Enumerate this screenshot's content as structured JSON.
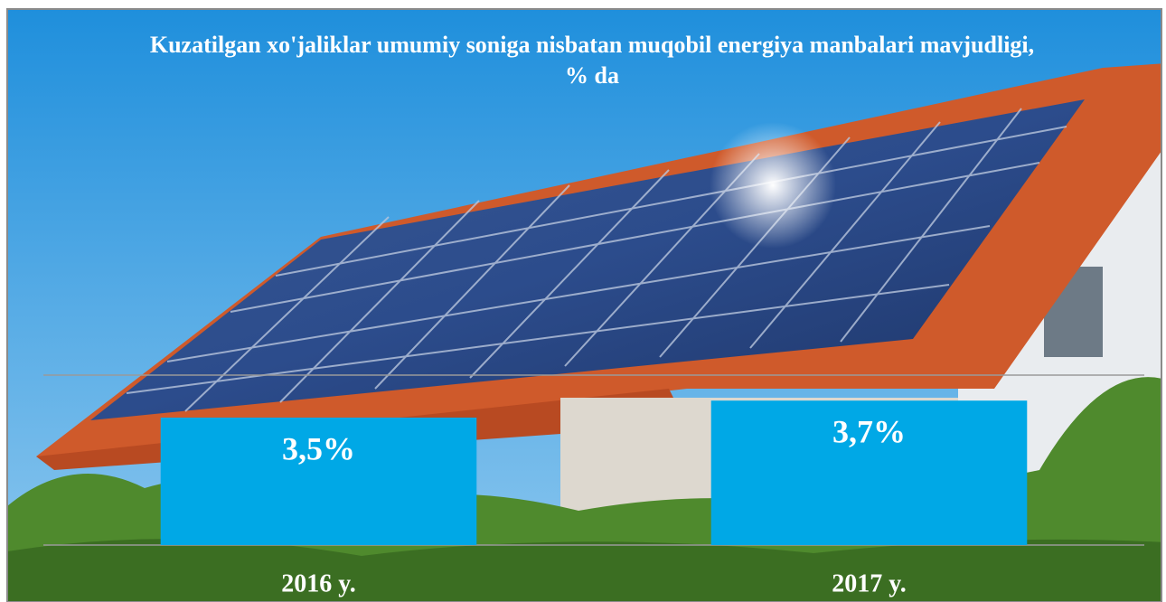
{
  "chart_data": {
    "type": "bar",
    "title": "Kuzatilgan xo'jaliklar umumiy soniga nisbatan muqobil energiya manbalari mavjudligi, % da",
    "categories": [
      "2016 y.",
      "2017 y."
    ],
    "values": [
      3.5,
      3.7
    ],
    "value_labels": [
      "3,5%",
      "3,7%"
    ],
    "color": "#00a8e6",
    "ylim": [
      2,
      4
    ]
  }
}
